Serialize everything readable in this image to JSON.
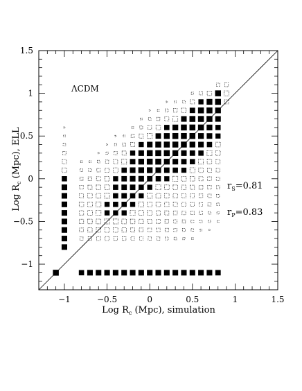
{
  "chart_data": {
    "type": "scatter",
    "title": "",
    "xlabel_main": "Log R",
    "xlabel_sub": "c",
    "xlabel_rest": " (Mpc), simulation",
    "ylabel_main": "Log R",
    "ylabel_sub": "c",
    "ylabel_rest": " (Mpc), ELL",
    "xlim": [
      -1.3,
      1.5
    ],
    "ylim": [
      -1.3,
      1.5
    ],
    "xticks": [
      -1,
      -0.5,
      0,
      0.5,
      1,
      1.5
    ],
    "yticks": [
      -1,
      -0.5,
      0,
      0.5,
      1,
      1.5
    ],
    "xtick_labels": [
      "−1",
      "−0.5",
      "0",
      "0.5",
      "1",
      "1.5"
    ],
    "ytick_labels": [
      "−1",
      "−0.5",
      "0",
      "0.5",
      "1",
      "1.5"
    ],
    "grid": false,
    "reference_line": "y = x",
    "annotations": {
      "model": "ΛCDM",
      "rs_main": "r",
      "rs_sub": "S",
      "rs_value": "=0.81",
      "rp_main": "r",
      "rp_sub": "P",
      "rp_value": "=0.83"
    },
    "point_columns": [
      {
        "x": -1.1,
        "y": [
          -1.1
        ],
        "w": [
          1.0
        ]
      },
      {
        "x": -1.0,
        "y": [
          -0.8,
          -0.7,
          -0.6,
          -0.5,
          -0.4,
          -0.3,
          -0.2,
          -0.1,
          0.0,
          0.1,
          0.2,
          0.3,
          0.4,
          0.5,
          0.6
        ],
        "w": [
          0.9,
          0.9,
          0.9,
          0.9,
          0.9,
          0.9,
          0.9,
          0.9,
          0.8,
          0.6,
          0.5,
          0.3,
          0.2,
          0.1,
          0.05
        ]
      },
      {
        "x": -0.8,
        "y": [
          -1.1,
          -0.7,
          -0.6,
          -0.5,
          -0.4,
          -0.3,
          -0.2,
          -0.1,
          0.0,
          0.1,
          0.2
        ],
        "w": [
          0.8,
          0.3,
          0.45,
          0.55,
          0.55,
          0.6,
          0.5,
          0.4,
          0.3,
          0.2,
          0.1
        ]
      },
      {
        "x": -0.7,
        "y": [
          -1.1,
          -0.7,
          -0.6,
          -0.5,
          -0.4,
          -0.3,
          -0.2,
          -0.1,
          0.0,
          0.1,
          0.2
        ],
        "w": [
          0.9,
          0.4,
          0.55,
          0.6,
          0.65,
          0.65,
          0.6,
          0.5,
          0.4,
          0.25,
          0.1
        ]
      },
      {
        "x": -0.6,
        "y": [
          -1.1,
          -0.7,
          -0.6,
          -0.5,
          -0.4,
          -0.3,
          -0.2,
          -0.1,
          0.0,
          0.1,
          0.2,
          0.3
        ],
        "w": [
          0.9,
          0.45,
          0.6,
          0.65,
          0.7,
          0.7,
          0.65,
          0.6,
          0.5,
          0.35,
          0.2,
          0.05
        ]
      },
      {
        "x": -0.5,
        "y": [
          -1.1,
          -0.7,
          -0.6,
          -0.5,
          -0.4,
          -0.3,
          -0.2,
          -0.1,
          0.0,
          0.1,
          0.2,
          0.3,
          0.4
        ],
        "w": [
          0.9,
          0.45,
          0.6,
          0.7,
          0.75,
          0.75,
          0.7,
          0.65,
          0.6,
          0.45,
          0.3,
          0.15,
          0.05
        ]
      },
      {
        "x": -0.4,
        "y": [
          -1.1,
          -0.7,
          -0.6,
          -0.5,
          -0.4,
          -0.3,
          -0.2,
          -0.1,
          0.0,
          0.1,
          0.2,
          0.3,
          0.4,
          0.5
        ],
        "w": [
          0.9,
          0.4,
          0.6,
          0.7,
          0.75,
          0.8,
          0.8,
          0.8,
          0.75,
          0.65,
          0.5,
          0.3,
          0.15,
          0.05
        ]
      },
      {
        "x": -0.3,
        "y": [
          -1.1,
          -0.7,
          -0.6,
          -0.5,
          -0.4,
          -0.3,
          -0.2,
          -0.1,
          0.0,
          0.1,
          0.2,
          0.3,
          0.4,
          0.5
        ],
        "w": [
          0.9,
          0.4,
          0.55,
          0.65,
          0.75,
          0.8,
          0.85,
          0.85,
          0.85,
          0.8,
          0.7,
          0.5,
          0.3,
          0.1
        ]
      },
      {
        "x": -0.2,
        "y": [
          -1.1,
          -0.7,
          -0.6,
          -0.5,
          -0.4,
          -0.3,
          -0.2,
          -0.1,
          0.0,
          0.1,
          0.2,
          0.3,
          0.4,
          0.5,
          0.6
        ],
        "w": [
          0.9,
          0.35,
          0.5,
          0.6,
          0.7,
          0.75,
          0.8,
          0.85,
          0.9,
          0.9,
          0.85,
          0.75,
          0.5,
          0.3,
          0.1
        ]
      },
      {
        "x": -0.1,
        "y": [
          -1.1,
          -0.7,
          -0.6,
          -0.5,
          -0.4,
          -0.3,
          -0.2,
          -0.1,
          0.0,
          0.1,
          0.2,
          0.3,
          0.4,
          0.5,
          0.6,
          0.7
        ],
        "w": [
          0.9,
          0.35,
          0.45,
          0.55,
          0.65,
          0.7,
          0.75,
          0.8,
          0.9,
          0.95,
          0.95,
          0.9,
          0.75,
          0.5,
          0.25,
          0.1
        ]
      },
      {
        "x": 0.0,
        "y": [
          -1.1,
          -0.7,
          -0.6,
          -0.5,
          -0.4,
          -0.3,
          -0.2,
          -0.1,
          0.0,
          0.1,
          0.2,
          0.3,
          0.4,
          0.5,
          0.6,
          0.7,
          0.8
        ],
        "w": [
          0.9,
          0.3,
          0.4,
          0.5,
          0.6,
          0.65,
          0.7,
          0.75,
          0.85,
          0.95,
          1.0,
          1.0,
          0.9,
          0.7,
          0.4,
          0.2,
          0.05
        ]
      },
      {
        "x": 0.1,
        "y": [
          -1.1,
          -0.7,
          -0.6,
          -0.5,
          -0.4,
          -0.3,
          -0.2,
          -0.1,
          0.0,
          0.1,
          0.2,
          0.3,
          0.4,
          0.5,
          0.6,
          0.7,
          0.8
        ],
        "w": [
          0.9,
          0.3,
          0.4,
          0.45,
          0.55,
          0.6,
          0.65,
          0.7,
          0.8,
          0.9,
          1.0,
          1.0,
          1.0,
          0.85,
          0.6,
          0.3,
          0.1
        ]
      },
      {
        "x": 0.2,
        "y": [
          -1.1,
          -0.7,
          -0.6,
          -0.5,
          -0.4,
          -0.3,
          -0.2,
          -0.1,
          0.0,
          0.1,
          0.2,
          0.3,
          0.4,
          0.5,
          0.6,
          0.7,
          0.8,
          0.9
        ],
        "w": [
          0.9,
          0.25,
          0.35,
          0.4,
          0.5,
          0.55,
          0.6,
          0.65,
          0.75,
          0.85,
          0.95,
          1.0,
          1.0,
          0.95,
          0.8,
          0.5,
          0.25,
          0.05
        ]
      },
      {
        "x": 0.3,
        "y": [
          -1.1,
          -0.7,
          -0.6,
          -0.5,
          -0.4,
          -0.3,
          -0.2,
          -0.1,
          0.0,
          0.1,
          0.2,
          0.3,
          0.4,
          0.5,
          0.6,
          0.7,
          0.8,
          0.9
        ],
        "w": [
          0.9,
          0.2,
          0.3,
          0.35,
          0.45,
          0.5,
          0.55,
          0.6,
          0.7,
          0.8,
          0.9,
          0.95,
          1.0,
          1.0,
          0.95,
          0.7,
          0.4,
          0.1
        ]
      },
      {
        "x": 0.4,
        "y": [
          -1.1,
          -0.7,
          -0.6,
          -0.5,
          -0.4,
          -0.3,
          -0.2,
          -0.1,
          0.0,
          0.1,
          0.2,
          0.3,
          0.4,
          0.5,
          0.6,
          0.7,
          0.8,
          0.9
        ],
        "w": [
          0.9,
          0.15,
          0.25,
          0.3,
          0.4,
          0.45,
          0.5,
          0.55,
          0.65,
          0.75,
          0.85,
          0.9,
          1.0,
          1.0,
          1.0,
          0.9,
          0.6,
          0.2
        ]
      },
      {
        "x": 0.5,
        "y": [
          -1.1,
          -0.7,
          -0.6,
          -0.5,
          -0.4,
          -0.3,
          -0.2,
          -0.1,
          0.0,
          0.1,
          0.2,
          0.3,
          0.4,
          0.5,
          0.6,
          0.7,
          0.8,
          0.9,
          1.0
        ],
        "w": [
          0.9,
          0.1,
          0.2,
          0.25,
          0.35,
          0.4,
          0.45,
          0.5,
          0.6,
          0.7,
          0.8,
          0.85,
          0.95,
          1.0,
          1.0,
          1.0,
          0.85,
          0.5,
          0.15
        ]
      },
      {
        "x": 0.6,
        "y": [
          -1.1,
          -0.6,
          -0.5,
          -0.4,
          -0.3,
          -0.2,
          -0.1,
          0.0,
          0.1,
          0.2,
          0.3,
          0.4,
          0.5,
          0.6,
          0.7,
          0.8,
          0.9,
          1.0
        ],
        "w": [
          0.9,
          0.1,
          0.2,
          0.3,
          0.35,
          0.4,
          0.45,
          0.5,
          0.6,
          0.7,
          0.8,
          0.9,
          0.95,
          1.0,
          1.0,
          1.0,
          0.75,
          0.3
        ]
      },
      {
        "x": 0.7,
        "y": [
          -1.1,
          -0.6,
          -0.5,
          -0.4,
          -0.3,
          -0.2,
          -0.1,
          0.0,
          0.1,
          0.2,
          0.3,
          0.4,
          0.5,
          0.6,
          0.7,
          0.8,
          0.9,
          1.0
        ],
        "w": [
          0.9,
          0.05,
          0.15,
          0.2,
          0.3,
          0.35,
          0.4,
          0.45,
          0.5,
          0.6,
          0.7,
          0.8,
          0.9,
          0.95,
          1.0,
          1.0,
          0.95,
          0.6
        ]
      },
      {
        "x": 0.8,
        "y": [
          -1.1,
          -0.5,
          -0.4,
          -0.3,
          -0.2,
          -0.1,
          0.0,
          0.1,
          0.2,
          0.3,
          0.4,
          0.5,
          0.6,
          0.7,
          0.8,
          0.9,
          1.0,
          1.1
        ],
        "w": [
          0.85,
          0.1,
          0.15,
          0.2,
          0.25,
          0.3,
          0.35,
          0.4,
          0.5,
          0.6,
          0.65,
          0.75,
          0.8,
          0.9,
          0.95,
          1.0,
          1.0,
          0.3
        ]
      },
      {
        "x": 0.9,
        "y": [
          0.9,
          1.0,
          1.1
        ],
        "w": [
          0.5,
          0.7,
          0.4
        ]
      }
    ]
  }
}
